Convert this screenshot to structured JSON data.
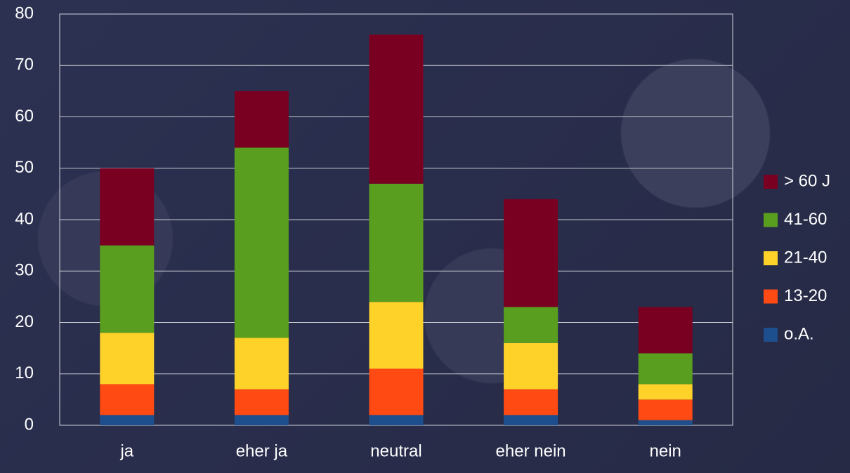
{
  "chart_data": {
    "type": "stacked_bar",
    "categories": [
      "ja",
      "eher ja",
      "neutral",
      "eher nein",
      "nein"
    ],
    "series": [
      {
        "name": "o.A.",
        "color": "#1d4f8e",
        "values": [
          2,
          2,
          2,
          2,
          1
        ]
      },
      {
        "name": "13-20",
        "color": "#ff4a14",
        "values": [
          6,
          5,
          9,
          5,
          4
        ]
      },
      {
        "name": "21-40",
        "color": "#ffd22a",
        "values": [
          10,
          10,
          13,
          9,
          3
        ]
      },
      {
        "name": "41-60",
        "color": "#5a9e1f",
        "values": [
          17,
          37,
          23,
          7,
          6
        ]
      },
      {
        "name": "> 60 J",
        "color": "#7a0022",
        "values": [
          15,
          11,
          29,
          21,
          9
        ]
      }
    ],
    "ylim": [
      0,
      80
    ],
    "yticks": [
      0,
      10,
      20,
      30,
      40,
      50,
      60,
      70,
      80
    ],
    "grid": true,
    "legend": "right"
  }
}
